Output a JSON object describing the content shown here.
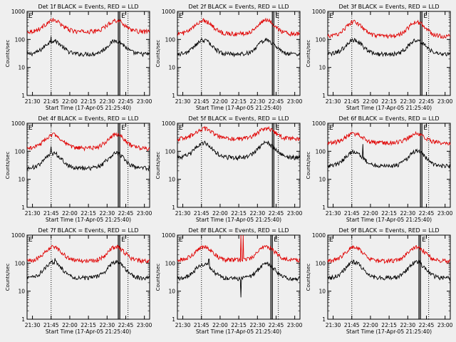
{
  "page_background": "#efefef",
  "panel_defaults": {
    "xticks": [
      "21:30",
      "21:45",
      "22:00",
      "22:15",
      "22:30",
      "22:45",
      "23:00"
    ],
    "yticks": [
      "1",
      "10",
      "100",
      "1000"
    ],
    "ylabel": "Counts/sec",
    "xlabel": "Start Time (17-Apr-05 21:25:40)",
    "marker_labels": [
      "E",
      "E"
    ]
  },
  "colors": {
    "events": "#000000",
    "lld": "#e00000",
    "axes": "#000000",
    "text": "#000000",
    "dotted_marker": "#000000"
  },
  "chart_data": [
    {
      "title": "Det 1f BLACK = Events, RED = LLD",
      "type": "line",
      "ylim": [
        1,
        1000
      ],
      "scale": "log",
      "series": [
        {
          "name": "Events",
          "color": "#000000",
          "base": 30,
          "peak": 90,
          "spikes": [
            [
              21.75,
              130
            ]
          ]
        },
        {
          "name": "LLD",
          "color": "#e00000",
          "base": 190,
          "peak": 480,
          "spikes": []
        }
      ],
      "markers": {
        "dotted": [
          21.75,
          22.78
        ],
        "solid": [
          22.65,
          22.67
        ]
      }
    },
    {
      "title": "Det 2f BLACK = Events, RED = LLD",
      "type": "line",
      "ylim": [
        1,
        1000
      ],
      "scale": "log",
      "series": [
        {
          "name": "Events",
          "color": "#000000",
          "base": 30,
          "peak": 95,
          "spikes": []
        },
        {
          "name": "LLD",
          "color": "#e00000",
          "base": 160,
          "peak": 480,
          "spikes": []
        }
      ],
      "markers": {
        "dotted": [
          21.75,
          22.78
        ],
        "solid": [
          22.7,
          22.72
        ]
      }
    },
    {
      "title": "Det 3f BLACK = Events, RED = LLD",
      "type": "line",
      "ylim": [
        1,
        1000
      ],
      "scale": "log",
      "series": [
        {
          "name": "Events",
          "color": "#000000",
          "base": 30,
          "peak": 95,
          "spikes": []
        },
        {
          "name": "LLD",
          "color": "#e00000",
          "base": 130,
          "peak": 420,
          "spikes": []
        }
      ],
      "markers": {
        "dotted": [
          21.75,
          22.78
        ],
        "solid": [
          22.67,
          22.69
        ]
      }
    },
    {
      "title": "Det 4f BLACK = Events, RED = LLD",
      "type": "line",
      "ylim": [
        1,
        1000
      ],
      "scale": "log",
      "series": [
        {
          "name": "Events",
          "color": "#000000",
          "base": 25,
          "peak": 85,
          "spikes": [
            [
              21.75,
              150
            ]
          ]
        },
        {
          "name": "LLD",
          "color": "#e00000",
          "base": 130,
          "peak": 400,
          "spikes": []
        }
      ],
      "markers": {
        "dotted": [
          21.75,
          22.78
        ],
        "solid": [
          22.65,
          22.67
        ]
      }
    },
    {
      "title": "Det 5f BLACK = Events, RED = LLD",
      "type": "line",
      "ylim": [
        1,
        1000
      ],
      "scale": "log",
      "series": [
        {
          "name": "Events",
          "color": "#000000",
          "base": 60,
          "peak": 200,
          "spikes": []
        },
        {
          "name": "LLD",
          "color": "#e00000",
          "base": 280,
          "peak": 650,
          "spikes": []
        }
      ],
      "markers": {
        "dotted": [
          21.75,
          22.78
        ],
        "solid": [
          22.7,
          22.72
        ]
      }
    },
    {
      "title": "Det 6f BLACK = Events, RED = LLD",
      "type": "line",
      "ylim": [
        1,
        1000
      ],
      "scale": "log",
      "series": [
        {
          "name": "Events",
          "color": "#000000",
          "base": 30,
          "peak": 100,
          "spikes": [
            [
              21.9,
              180
            ]
          ]
        },
        {
          "name": "LLD",
          "color": "#e00000",
          "base": 200,
          "peak": 420,
          "spikes": []
        }
      ],
      "markers": {
        "dotted": [
          21.75,
          22.78
        ],
        "solid": [
          22.67,
          22.69
        ]
      }
    },
    {
      "title": "Det 7f BLACK = Events, RED = LLD",
      "type": "line",
      "ylim": [
        1,
        1000
      ],
      "scale": "log",
      "series": [
        {
          "name": "Events",
          "color": "#000000",
          "base": 30,
          "peak": 110,
          "spikes": [
            [
              21.8,
              150
            ]
          ]
        },
        {
          "name": "LLD",
          "color": "#e00000",
          "base": 120,
          "peak": 380,
          "spikes": []
        }
      ],
      "markers": {
        "dotted": [
          21.75,
          22.78
        ],
        "solid": [
          22.65,
          22.67
        ]
      }
    },
    {
      "title": "Det 8f BLACK = Events, RED = LLD",
      "type": "line",
      "ylim": [
        1,
        1000
      ],
      "scale": "log",
      "series": [
        {
          "name": "Events",
          "color": "#000000",
          "base": 28,
          "peak": 95,
          "spikes": [
            [
              21.85,
              140
            ],
            [
              22.28,
              6
            ]
          ]
        },
        {
          "name": "LLD",
          "color": "#e00000",
          "base": 130,
          "peak": 380,
          "spikes": [
            [
              22.28,
              1000
            ],
            [
              22.31,
              1000
            ]
          ]
        }
      ],
      "markers": {
        "dotted": [
          21.75,
          22.78
        ],
        "solid": [
          22.68,
          22.7
        ]
      }
    },
    {
      "title": "Det 9f BLACK = Events, RED = LLD",
      "type": "line",
      "ylim": [
        1,
        1000
      ],
      "scale": "log",
      "series": [
        {
          "name": "Events",
          "color": "#000000",
          "base": 30,
          "peak": 110,
          "spikes": []
        },
        {
          "name": "LLD",
          "color": "#e00000",
          "base": 120,
          "peak": 380,
          "spikes": []
        }
      ],
      "markers": {
        "dotted": [
          21.75,
          22.78
        ],
        "solid": [
          22.65,
          22.67
        ]
      }
    }
  ]
}
